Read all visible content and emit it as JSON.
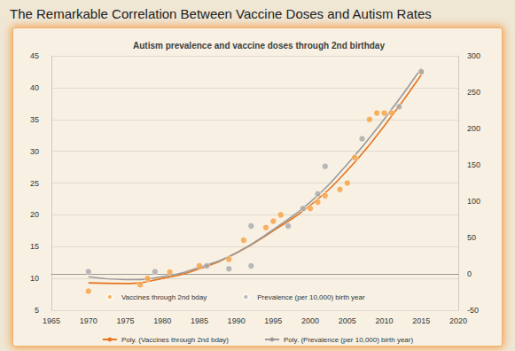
{
  "chart_data": {
    "type": "scatter",
    "title": "The Remarkable Correlation Between Vaccine Doses and Autism Rates",
    "subtitle": "Autism prevalence and vaccine doses through 2nd birthday",
    "xlim": [
      1965,
      2020
    ],
    "xticks": [
      1965,
      1970,
      1975,
      1980,
      1985,
      1990,
      1995,
      2000,
      2005,
      2010,
      2015,
      2020
    ],
    "ylim": [
      5,
      45
    ],
    "yticks": [
      5,
      10,
      15,
      20,
      25,
      30,
      35,
      40,
      45
    ],
    "y2lim": [
      -50,
      300
    ],
    "y2ticks": [
      -50,
      0,
      50,
      100,
      150,
      200,
      250,
      300
    ],
    "grid": true,
    "legend": "bottom",
    "series": [
      {
        "name": "Vaccines through 2nd bday",
        "type": "scatter",
        "marker": "circle",
        "color": "#f5a040",
        "x": [
          1970,
          1977,
          1978,
          1981,
          1985,
          1989,
          1991,
          1994,
          1995,
          1996,
          2000,
          2001,
          2002,
          2004,
          2005,
          2006,
          2008,
          2009,
          2010,
          2011,
          2015
        ],
        "values": [
          8,
          9,
          10,
          11,
          12,
          13,
          16,
          18,
          19,
          20,
          21,
          22,
          23,
          24,
          25,
          29,
          35,
          36,
          36,
          36,
          42.5
        ]
      },
      {
        "name": "Prevalence (per 10,000) birth year",
        "type": "scatter",
        "marker": "circle",
        "color": "#a9a9a9",
        "axis": "y2",
        "x": [
          1970,
          1979,
          1986,
          1989,
          1992,
          1992,
          1997,
          1999,
          2001,
          2002,
          2007,
          2012,
          2015
        ],
        "values": [
          3,
          3,
          11,
          7,
          11,
          66,
          66,
          90,
          110,
          148,
          186,
          230,
          278
        ]
      },
      {
        "name": "Poly. (Vaccines through 2nd bday)",
        "type": "line",
        "line_style": "solid",
        "color": "#e8731e",
        "x": [
          1970,
          1975,
          1980,
          1985,
          1990,
          1995,
          2000,
          2005,
          2010,
          2015
        ],
        "values": [
          9.3,
          9.2,
          10,
          11.5,
          14,
          17.5,
          21.5,
          27,
          34,
          42
        ]
      },
      {
        "name": "Poly. (Prevalence (per 10,000) birth year)",
        "type": "line",
        "line_style": "solid",
        "color": "#9a9a9a",
        "axis": "y2",
        "x": [
          1970,
          1975,
          1980,
          1985,
          1990,
          1995,
          2000,
          2005,
          2010,
          2015
        ],
        "values": [
          -4,
          -8,
          -4,
          9,
          29,
          61,
          99,
          151,
          213,
          283
        ]
      }
    ]
  }
}
